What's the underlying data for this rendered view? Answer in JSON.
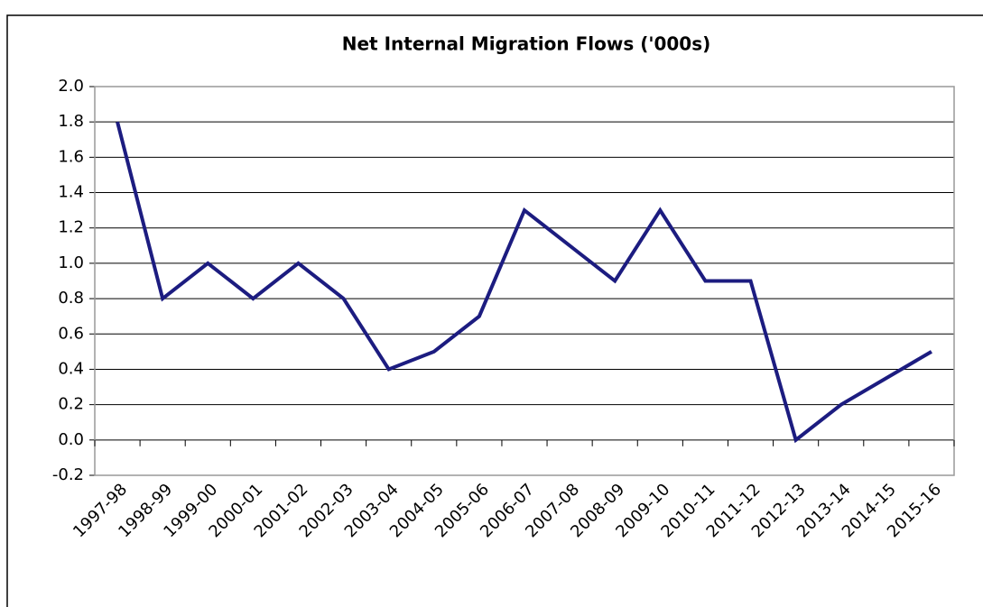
{
  "chart_data": {
    "type": "line",
    "title": "Net Internal Migration Flows ('000s)",
    "categories": [
      "1997-98",
      "1998-99",
      "1999-00",
      "2000-01",
      "2001-02",
      "2002-03",
      "2003-04",
      "2004-05",
      "2005-06",
      "2006-07",
      "2007-08",
      "2008-09",
      "2009-10",
      "2010-11",
      "2011-12",
      "2012-13",
      "2013-14",
      "2014-15",
      "2015-16"
    ],
    "values": [
      1.8,
      0.8,
      1.0,
      0.8,
      1.0,
      0.8,
      0.4,
      0.5,
      0.7,
      1.3,
      1.1,
      0.9,
      1.3,
      0.9,
      0.9,
      0.0,
      0.2,
      0.35,
      0.5
    ],
    "color": "#1c1c80",
    "ylim": [
      -0.2,
      2.0
    ],
    "yticks": [
      {
        "value": 2.0,
        "label": "2.0"
      },
      1.8,
      1.6,
      1.4,
      1.2,
      {
        "value": 1.0,
        "label": "1.0"
      },
      0.8,
      0.6,
      0.4,
      0.2,
      {
        "value": 0.0,
        "label": "0.0"
      },
      -0.2
    ],
    "grid": true
  }
}
